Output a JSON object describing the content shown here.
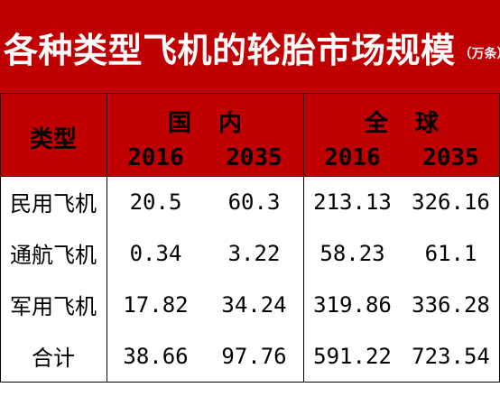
{
  "title": {
    "main": "各种类型飞机的轮胎市场规模",
    "unit": "（万条）"
  },
  "header": {
    "type_label": "类型",
    "groups": [
      {
        "label": "国内",
        "years": [
          "2016",
          "2035"
        ]
      },
      {
        "label": "全球",
        "years": [
          "2016",
          "2035"
        ]
      }
    ]
  },
  "rows": [
    {
      "label": "民用飞机",
      "values": [
        "20.5",
        "60.3",
        "213.13",
        "326.16"
      ]
    },
    {
      "label": "通航飞机",
      "values": [
        "0.34",
        "3.22",
        "58.23",
        "61.1"
      ]
    },
    {
      "label": "军用飞机",
      "values": [
        "17.82",
        "34.24",
        "319.86",
        "336.28"
      ]
    },
    {
      "label": "合计",
      "values": [
        "38.66",
        "97.76",
        "591.22",
        "723.54"
      ]
    }
  ],
  "colors": {
    "header_background": "#c00000",
    "title_text": "#ffffff",
    "body_background": "#ffffff",
    "grid": "#000000"
  }
}
